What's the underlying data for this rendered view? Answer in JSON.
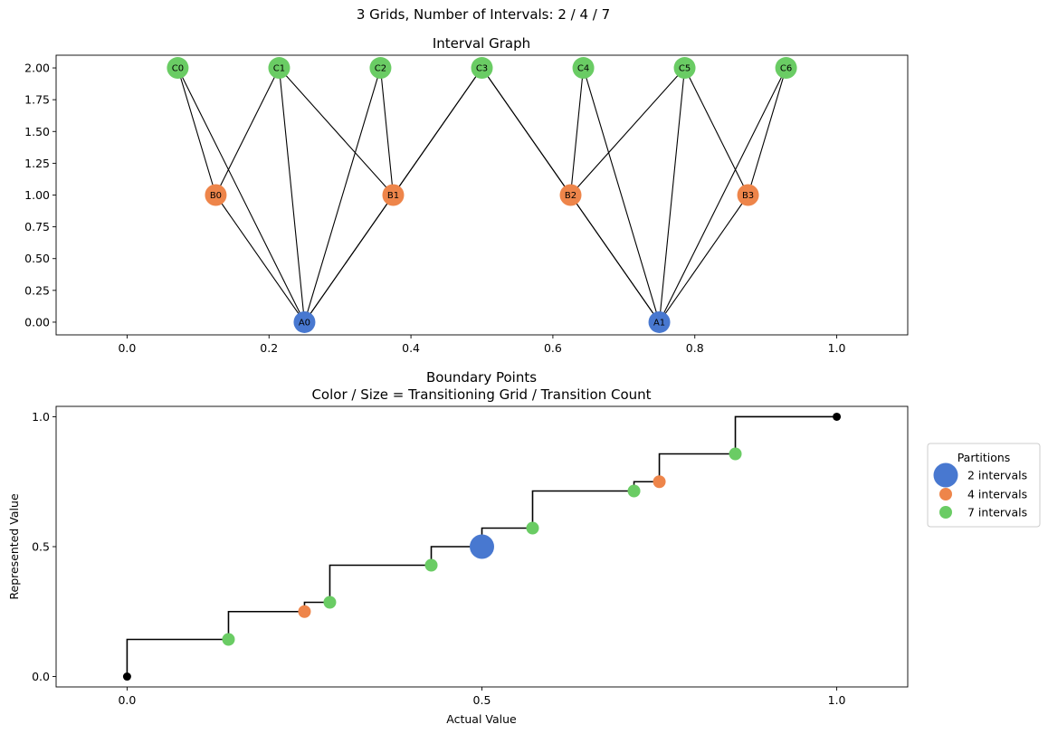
{
  "suptitle": "3 Grids, Number of Intervals: 2 / 4 / 7",
  "colors": {
    "A": "#4878d0",
    "B": "#ee854a",
    "C": "#6acc64",
    "edge": "#000000",
    "endpoint": "#000000"
  },
  "chart_data": [
    {
      "type": "network",
      "title": "Interval Graph",
      "xlim": [
        -0.1,
        1.1
      ],
      "ylim": [
        -0.1,
        2.1
      ],
      "xticks": [
        "0.0",
        "0.2",
        "0.4",
        "0.6",
        "0.8",
        "1.0"
      ],
      "xtick_values": [
        0,
        0.2,
        0.4,
        0.6,
        0.8,
        1.0
      ],
      "yticks": [
        "0.00",
        "0.25",
        "0.50",
        "0.75",
        "1.00",
        "1.25",
        "1.50",
        "1.75",
        "2.00"
      ],
      "ytick_values": [
        0,
        0.25,
        0.5,
        0.75,
        1.0,
        1.25,
        1.5,
        1.75,
        2.0
      ],
      "nodes": [
        {
          "id": "A0",
          "label": "A0",
          "grid": "A",
          "x": 0.25,
          "y": 0
        },
        {
          "id": "A1",
          "label": "A1",
          "grid": "A",
          "x": 0.75,
          "y": 0
        },
        {
          "id": "B0",
          "label": "B0",
          "grid": "B",
          "x": 0.125,
          "y": 1
        },
        {
          "id": "B1",
          "label": "B1",
          "grid": "B",
          "x": 0.375,
          "y": 1
        },
        {
          "id": "B2",
          "label": "B2",
          "grid": "B",
          "x": 0.625,
          "y": 1
        },
        {
          "id": "B3",
          "label": "B3",
          "grid": "B",
          "x": 0.875,
          "y": 1
        },
        {
          "id": "C0",
          "label": "C0",
          "grid": "C",
          "x": 0.0714,
          "y": 2
        },
        {
          "id": "C1",
          "label": "C1",
          "grid": "C",
          "x": 0.2143,
          "y": 2
        },
        {
          "id": "C2",
          "label": "C2",
          "grid": "C",
          "x": 0.3571,
          "y": 2
        },
        {
          "id": "C3",
          "label": "C3",
          "grid": "C",
          "x": 0.5,
          "y": 2
        },
        {
          "id": "C4",
          "label": "C4",
          "grid": "C",
          "x": 0.6429,
          "y": 2
        },
        {
          "id": "C5",
          "label": "C5",
          "grid": "C",
          "x": 0.7857,
          "y": 2
        },
        {
          "id": "C6",
          "label": "C6",
          "grid": "C",
          "x": 0.9286,
          "y": 2
        }
      ],
      "edges": [
        [
          "A0",
          "B0"
        ],
        [
          "A0",
          "B1"
        ],
        [
          "A1",
          "B2"
        ],
        [
          "A1",
          "B3"
        ],
        [
          "A0",
          "C0"
        ],
        [
          "A0",
          "C1"
        ],
        [
          "A0",
          "C2"
        ],
        [
          "A0",
          "C3"
        ],
        [
          "A1",
          "C3"
        ],
        [
          "A1",
          "C4"
        ],
        [
          "A1",
          "C5"
        ],
        [
          "A1",
          "C6"
        ],
        [
          "B0",
          "C0"
        ],
        [
          "B0",
          "C1"
        ],
        [
          "B1",
          "C1"
        ],
        [
          "B1",
          "C2"
        ],
        [
          "B1",
          "C3"
        ],
        [
          "B2",
          "C3"
        ],
        [
          "B2",
          "C4"
        ],
        [
          "B2",
          "C5"
        ],
        [
          "B3",
          "C5"
        ],
        [
          "B3",
          "C6"
        ]
      ]
    },
    {
      "type": "step-scatter",
      "title": "Boundary Points",
      "subtitle": "Color / Size = Transitioning Grid / Transition Count",
      "xlabel": "Actual Value",
      "ylabel": "Represented Value",
      "xlim": [
        -0.1,
        1.1
      ],
      "ylim": [
        -0.04,
        1.04
      ],
      "xticks": [
        "0.0",
        "0.5",
        "1.0"
      ],
      "xtick_values": [
        0,
        0.5,
        1.0
      ],
      "yticks": [
        "0.0",
        "0.5",
        "1.0"
      ],
      "ytick_values": [
        0,
        0.5,
        1.0
      ],
      "step_x": [
        0,
        0.1429,
        0.25,
        0.2857,
        0.4286,
        0.5,
        0.5714,
        0.7143,
        0.75,
        0.8571,
        1.0
      ],
      "step_y": [
        0.1429,
        0.25,
        0.2857,
        0.4286,
        0.5,
        0.5714,
        0.7143,
        0.75,
        0.8571,
        1.0
      ],
      "endpoints": [
        {
          "x": 0,
          "y": 0
        },
        {
          "x": 1.0,
          "y": 1.0
        }
      ],
      "points": [
        {
          "x": 0.1429,
          "y": 0.1429,
          "grid": "C",
          "count": 1
        },
        {
          "x": 0.25,
          "y": 0.25,
          "grid": "B",
          "count": 1
        },
        {
          "x": 0.2857,
          "y": 0.2857,
          "grid": "C",
          "count": 1
        },
        {
          "x": 0.4286,
          "y": 0.4286,
          "grid": "C",
          "count": 1
        },
        {
          "x": 0.5,
          "y": 0.5,
          "grid": "A",
          "count": 3
        },
        {
          "x": 0.5714,
          "y": 0.5714,
          "grid": "C",
          "count": 1
        },
        {
          "x": 0.7143,
          "y": 0.7143,
          "grid": "C",
          "count": 1
        },
        {
          "x": 0.75,
          "y": 0.75,
          "grid": "B",
          "count": 1
        },
        {
          "x": 0.8571,
          "y": 0.8571,
          "grid": "C",
          "count": 1
        }
      ],
      "legend": {
        "title": "Partitions",
        "placement": "outside-right",
        "entries": [
          {
            "label": "2 intervals",
            "grid": "A"
          },
          {
            "label": "4 intervals",
            "grid": "B"
          },
          {
            "label": "7 intervals",
            "grid": "C"
          }
        ]
      }
    }
  ]
}
